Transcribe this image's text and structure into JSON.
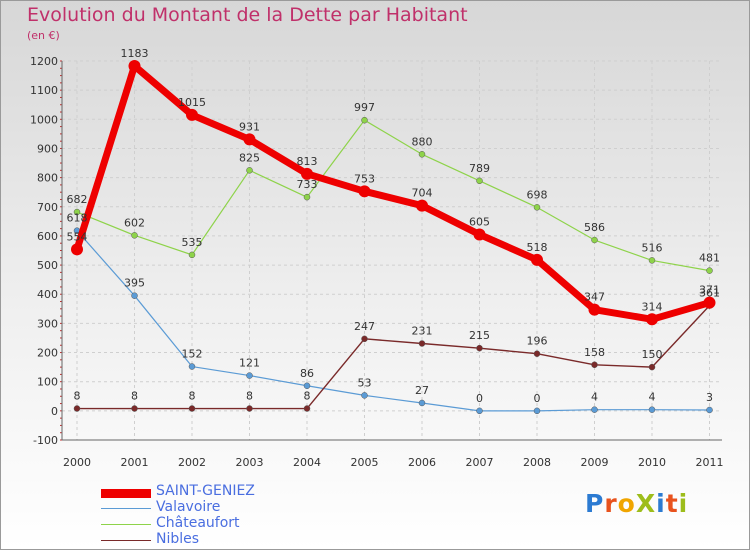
{
  "chart_data": {
    "type": "line",
    "title": "Evolution du Montant de la Dette par Habitant",
    "subtitle": "(en €)",
    "x": [
      "2000",
      "2001",
      "2002",
      "2003",
      "2004",
      "2005",
      "2006",
      "2007",
      "2008",
      "2009",
      "2010",
      "2011"
    ],
    "ylim": [
      -100,
      1200
    ],
    "yticks": [
      -100,
      0,
      100,
      200,
      300,
      400,
      500,
      600,
      700,
      800,
      900,
      1000,
      1100,
      1200
    ],
    "grid": true,
    "legend_position": "bottom-left",
    "series": [
      {
        "name": "SAINT-GENIEZ",
        "color": "#ee0000",
        "values": [
          554,
          1183,
          1015,
          931,
          813,
          753,
          704,
          605,
          518,
          347,
          314,
          371
        ]
      },
      {
        "name": "Valavoire",
        "color": "#5b9bd5",
        "values": [
          618,
          395,
          152,
          121,
          86,
          53,
          27,
          0,
          0,
          4,
          4,
          3
        ]
      },
      {
        "name": "Châteaufort",
        "color": "#8ed34a",
        "values": [
          682,
          602,
          535,
          825,
          733,
          997,
          880,
          789,
          698,
          586,
          516,
          481
        ]
      },
      {
        "name": "Nibles",
        "color": "#7a2a2a",
        "values": [
          8,
          8,
          8,
          8,
          8,
          247,
          231,
          215,
          196,
          158,
          150,
          361
        ]
      }
    ]
  },
  "legend": {
    "items": [
      {
        "label": "SAINT-GENIEZ"
      },
      {
        "label": "Valavoire"
      },
      {
        "label": "Châteaufort"
      },
      {
        "label": "Nibles"
      }
    ]
  },
  "logo": {
    "text": "ProXiti"
  }
}
